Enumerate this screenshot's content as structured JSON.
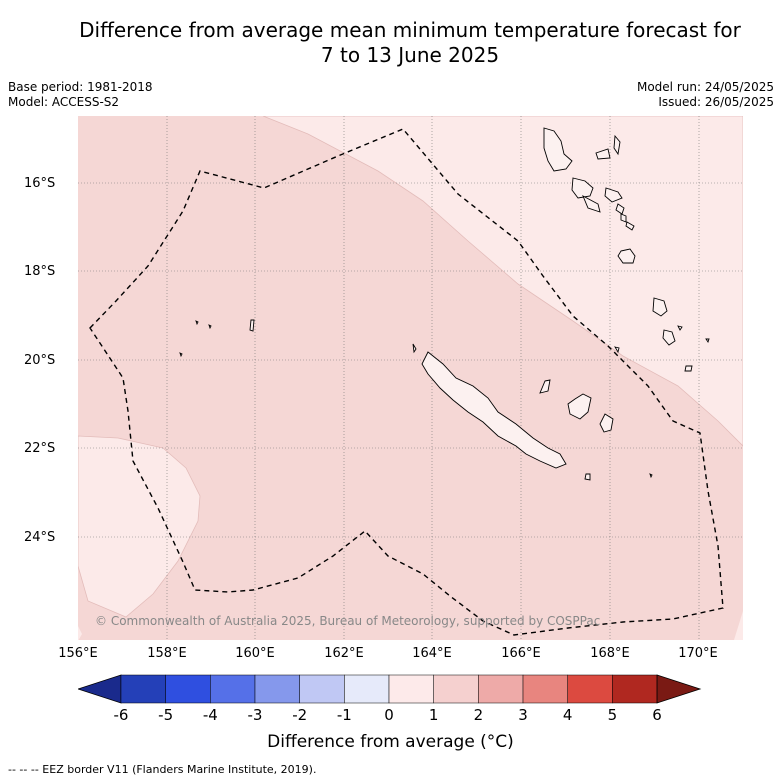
{
  "title_line1": "Difference from average mean minimum temperature forecast for",
  "title_line2": "7 to 13 June 2025",
  "base_period": "Base period: 1981-2018",
  "model": "Model: ACCESS-S2",
  "model_run": "Model run: 24/05/2025",
  "issued": "Issued: 26/05/2025",
  "copyright": "© Commonwealth of Australia 2025, Bureau of Meteorology, supported by COSPPac",
  "lat_labels": [
    "16°S",
    "18°S",
    "20°S",
    "22°S",
    "24°S"
  ],
  "lon_labels": [
    "156°E",
    "158°E",
    "160°E",
    "162°E",
    "164°E",
    "166°E",
    "168°E",
    "170°E"
  ],
  "colorbar": {
    "label": "Difference from average (°C)",
    "ticks": [
      "-6",
      "-5",
      "-4",
      "-3",
      "-2",
      "-1",
      "0",
      "1",
      "2",
      "3",
      "4",
      "5",
      "6"
    ],
    "colors": [
      "#1a2a8c",
      "#2440b8",
      "#2f4fe0",
      "#5570e8",
      "#8598ec",
      "#c0c8f4",
      "#e6eafa",
      "#fdeaea",
      "#f5d0cf",
      "#eeaaa8",
      "#e8857f",
      "#dc4a40",
      "#b02820",
      "#7a1a14"
    ]
  },
  "legend_footnote": "-- -- -- EEZ border V11 (Flanders Marine Institute, 2019).",
  "map_colors": {
    "zone_0_to_1": "#fceae9",
    "zone_1_to_2": "#f5d7d5",
    "eez_line": "#000000"
  }
}
